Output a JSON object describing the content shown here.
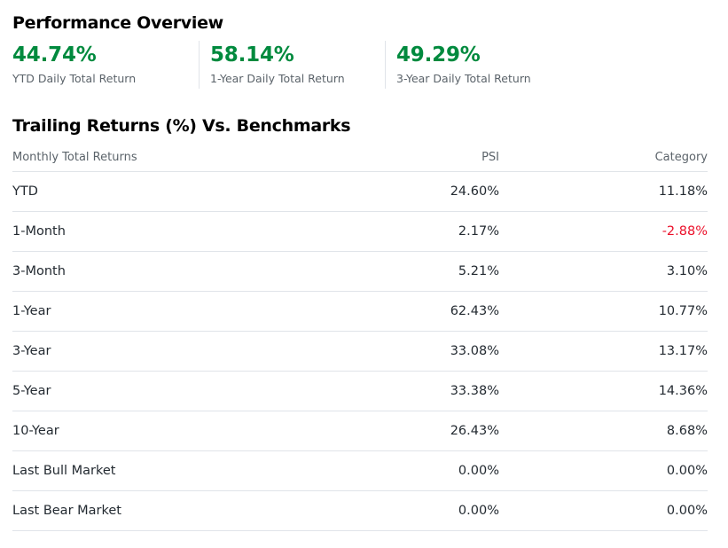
{
  "performance": {
    "title": "Performance Overview",
    "metrics": [
      {
        "value": "44.74%",
        "label": "YTD Daily Total Return"
      },
      {
        "value": "58.14%",
        "label": "1-Year Daily Total Return"
      },
      {
        "value": "49.29%",
        "label": "3-Year Daily Total Return"
      }
    ],
    "positive_color": "#008a3e"
  },
  "trailing": {
    "title": "Trailing Returns (%) Vs. Benchmarks",
    "headers": {
      "name": "Monthly Total Returns",
      "psi": "PSI",
      "category": "Category"
    },
    "rows": [
      {
        "name": "YTD",
        "psi": "24.60%",
        "category": "11.18%"
      },
      {
        "name": "1-Month",
        "psi": "2.17%",
        "category": "-2.88%"
      },
      {
        "name": "3-Month",
        "psi": "5.21%",
        "category": "3.10%"
      },
      {
        "name": "1-Year",
        "psi": "62.43%",
        "category": "10.77%"
      },
      {
        "name": "3-Year",
        "psi": "33.08%",
        "category": "13.17%"
      },
      {
        "name": "5-Year",
        "psi": "33.38%",
        "category": "14.36%"
      },
      {
        "name": "10-Year",
        "psi": "26.43%",
        "category": "8.68%"
      },
      {
        "name": "Last Bull Market",
        "psi": "0.00%",
        "category": "0.00%"
      },
      {
        "name": "Last Bear Market",
        "psi": "0.00%",
        "category": "0.00%"
      }
    ],
    "negative_color": "#eb0f29"
  }
}
